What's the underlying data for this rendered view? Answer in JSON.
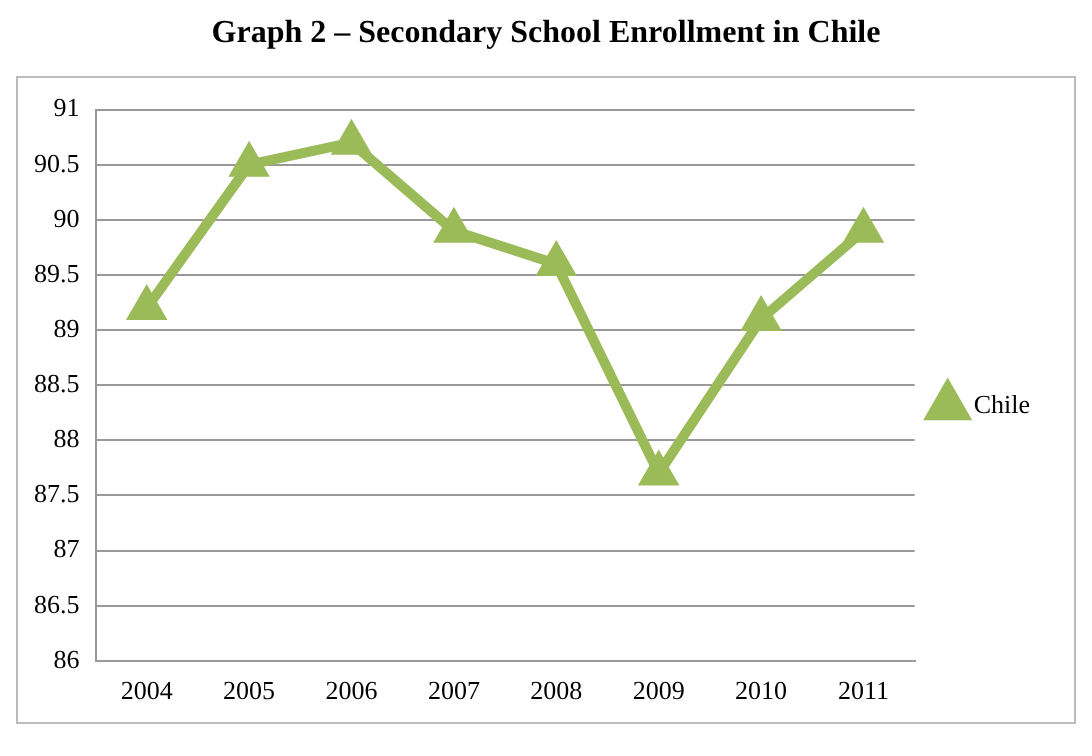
{
  "chart_data": {
    "type": "line",
    "title": "Graph 2 – Secondary School Enrollment in Chile",
    "categories": [
      "2004",
      "2005",
      "2006",
      "2007",
      "2008",
      "2009",
      "2010",
      "2011"
    ],
    "series": [
      {
        "name": "Chile",
        "color": "#9bbb59",
        "values": [
          89.2,
          90.5,
          90.7,
          89.9,
          89.6,
          87.7,
          89.1,
          89.9
        ]
      }
    ],
    "ylim": [
      86,
      91
    ],
    "yticks": [
      86,
      86.5,
      87,
      87.5,
      88,
      88.5,
      89,
      89.5,
      90,
      90.5,
      91
    ],
    "grid": "y",
    "legend": "right",
    "marker": "triangle",
    "line_style": "solid"
  }
}
